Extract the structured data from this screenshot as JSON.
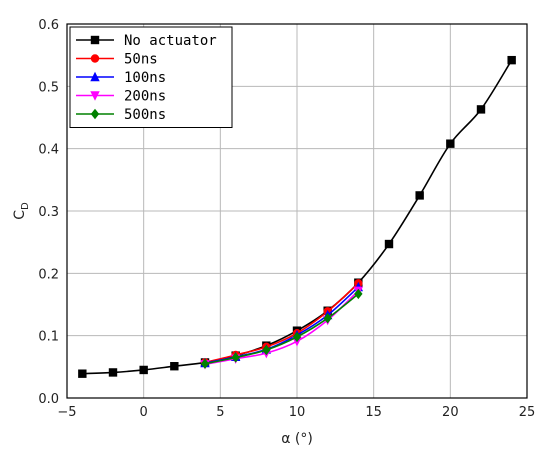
{
  "chart_data": {
    "type": "line",
    "xlabel": "α (°)",
    "ylabel": {
      "main": "C",
      "sub": "D"
    },
    "xlim": [
      -5,
      25
    ],
    "ylim": [
      0,
      0.6
    ],
    "xticks": [
      -5,
      0,
      5,
      10,
      15,
      20,
      25
    ],
    "yticks": [
      0,
      0.1,
      0.2,
      0.3,
      0.4,
      0.5,
      0.6
    ],
    "grid": true,
    "legend_position": "top-left",
    "series": [
      {
        "name": "No actuator",
        "color": "#000000",
        "marker": "square",
        "x": [
          -4,
          -2,
          0,
          2,
          4,
          6,
          8,
          10,
          12,
          14,
          16,
          18,
          20,
          22,
          24
        ],
        "y": [
          0.039,
          0.041,
          0.045,
          0.051,
          0.057,
          0.068,
          0.084,
          0.108,
          0.14,
          0.185,
          0.247,
          0.325,
          0.408,
          0.463,
          0.542
        ]
      },
      {
        "name": "50ns",
        "color": "#ff0000",
        "marker": "circle",
        "x": [
          4,
          6,
          8,
          10,
          12,
          14
        ],
        "y": [
          0.057,
          0.069,
          0.082,
          0.104,
          0.139,
          0.184
        ]
      },
      {
        "name": "100ns",
        "color": "#0000ff",
        "marker": "triangle-up",
        "x": [
          4,
          6,
          8,
          10,
          12,
          14
        ],
        "y": [
          0.056,
          0.066,
          0.078,
          0.101,
          0.133,
          0.178
        ]
      },
      {
        "name": "200ns",
        "color": "#ff00ff",
        "marker": "triangle-down",
        "x": [
          4,
          6,
          8,
          10,
          12,
          14
        ],
        "y": [
          0.054,
          0.063,
          0.072,
          0.091,
          0.125,
          0.172
        ]
      },
      {
        "name": "500ns",
        "color": "#008000",
        "marker": "diamond",
        "x": [
          4,
          6,
          8,
          10,
          12,
          14
        ],
        "y": [
          0.055,
          0.065,
          0.077,
          0.098,
          0.128,
          0.167
        ]
      }
    ]
  }
}
